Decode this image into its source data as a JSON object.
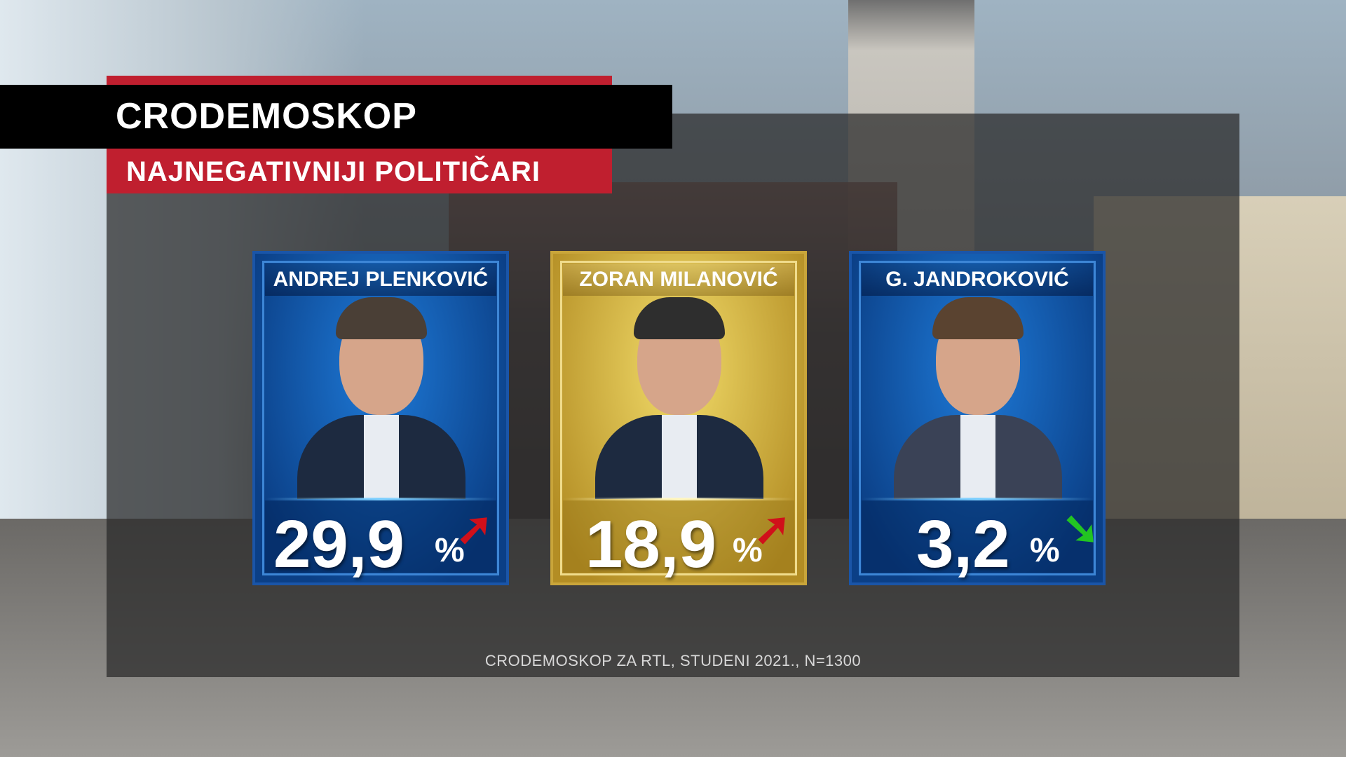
{
  "header": {
    "title": "CRODEMOSKOP",
    "subtitle": "NAJNEGATIVNIJI POLITIČARI"
  },
  "cards": [
    {
      "name": "ANDREJ PLENKOVIĆ",
      "value": "29,9",
      "unit": "%",
      "trend": "up",
      "arrow": "➚",
      "arrow_color": "#d0101a",
      "theme": "blue"
    },
    {
      "name": "ZORAN MILANOVIĆ",
      "value": "18,9",
      "unit": "%",
      "trend": "up",
      "arrow": "➚",
      "arrow_color": "#d0101a",
      "theme": "gold"
    },
    {
      "name": "G. JANDROKOVIĆ",
      "value": "3,2",
      "unit": "%",
      "trend": "down",
      "arrow": "➘",
      "arrow_color": "#22c422",
      "theme": "blue"
    }
  ],
  "footer": "CRODEMOSKOP ZA RTL, STUDENI 2021., N=1300",
  "colors": {
    "red": "#c01f2f",
    "blue": "#0b3f86",
    "gold": "#c9a53a"
  }
}
